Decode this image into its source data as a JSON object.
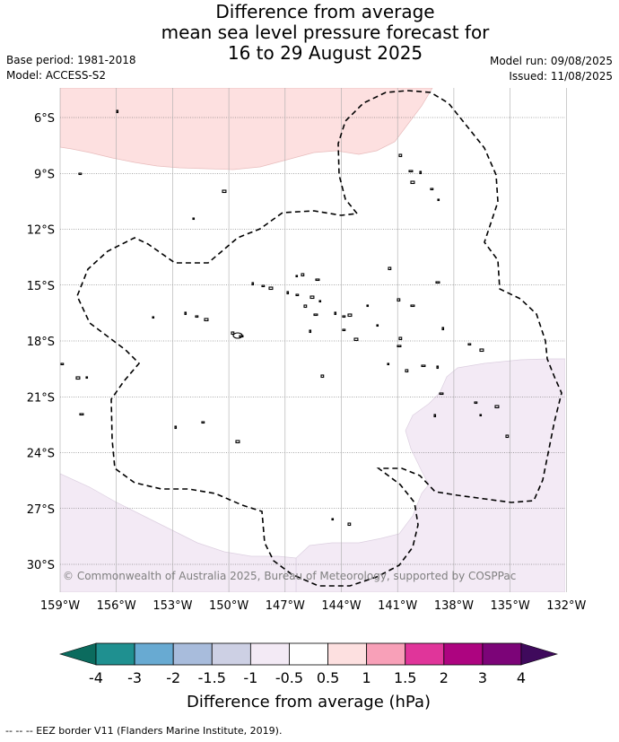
{
  "title": {
    "line1": "Difference from average",
    "line2": "mean sea level pressure forecast for",
    "line3": "16 to 29 August 2025"
  },
  "meta": {
    "base_period": "Base period: 1981-2018",
    "model": "Model: ACCESS-S2",
    "model_run": "Model run: 09/08/2025",
    "issued": "Issued: 11/08/2025"
  },
  "map": {
    "lon_range": [
      -159,
      -132
    ],
    "lat_range": [
      -31.6,
      -4.8
    ],
    "lat_ticks": [
      "6°S",
      "9°S",
      "12°S",
      "15°S",
      "18°S",
      "21°S",
      "24°S",
      "27°S",
      "30°S"
    ],
    "lon_ticks": [
      "159°W",
      "156°W",
      "153°W",
      "150°W",
      "147°W",
      "144°W",
      "141°W",
      "138°W",
      "135°W",
      "132°W"
    ],
    "grid": true,
    "copyright": "© Commonwealth of Australia 2025, Bureau of Meteorology, supported by COSPPac",
    "anomaly_fields": [
      {
        "class": "0.5 to 1",
        "color": "#fde0e0",
        "region": "north"
      },
      {
        "class": "-1 to -0.5",
        "color": "#f3eaf5",
        "region": "south-east"
      },
      {
        "class": "-1 to -0.5",
        "color": "#f3eaf5",
        "region": "south-west"
      }
    ]
  },
  "colorbar": {
    "title": "Difference from average (hPa)",
    "ticks": [
      "-4",
      "-3",
      "-2",
      "-1.5",
      "-1",
      "-0.5",
      "0.5",
      "1",
      "1.5",
      "2",
      "3",
      "4"
    ],
    "under_color": "#0b6b5e",
    "over_color": "#3f0a5c",
    "colors": [
      "#1f9090",
      "#68aad2",
      "#a8bcdc",
      "#cdd0e4",
      "#f3eaf5",
      "#ffffff",
      "#fde0e0",
      "#f8a0b8",
      "#e0359a",
      "#ad0480",
      "#7c0478"
    ]
  },
  "footer": "--  --  -- EEZ border V11 (Flanders Marine Institute, 2019)."
}
